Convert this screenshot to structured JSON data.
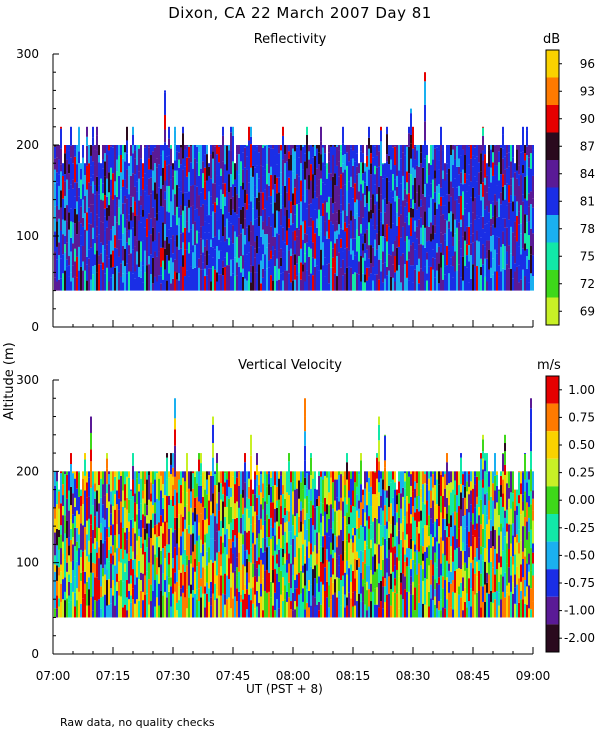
{
  "header": {
    "title": "Dixon, CA 22 March 2007  Day  81",
    "footnote": "Raw data, no quality checks"
  },
  "chart_data": [
    {
      "type": "heatmap",
      "title": "Reflectivity",
      "ylabel": "Altitude (m)",
      "xlabel": "UT  (PST + 8)",
      "ylim": [
        0,
        300
      ],
      "xlim": [
        "07:00",
        "09:00"
      ],
      "y_ticks": [
        "0",
        "100",
        "200",
        "300"
      ],
      "x_ticks": [
        "07:00",
        "07:15",
        "07:30",
        "07:45",
        "08:00",
        "08:15",
        "08:30",
        "08:45",
        "09:00"
      ],
      "colorbar": {
        "unit": "dB",
        "tick_labels": [
          "96",
          "93",
          "90",
          "87",
          "84",
          "81",
          "78",
          "75",
          "72",
          "69"
        ],
        "colors": [
          "#fad200",
          "#ff7a00",
          "#e60000",
          "#2a0a1e",
          "#5a1a96",
          "#1a2ee6",
          "#1ab0f0",
          "#12e8a8",
          "#3ed81a",
          "#c8f026"
        ]
      },
      "data_range_altitude_m": [
        40,
        280
      ],
      "typical_echo_top_m": 200,
      "dominant_values_db": [
        81,
        84
      ]
    },
    {
      "type": "heatmap",
      "title": "Vertical Velocity",
      "ylabel": "Altitude (m)",
      "xlabel": "UT  (PST + 8)",
      "ylim": [
        0,
        300
      ],
      "xlim": [
        "07:00",
        "09:00"
      ],
      "y_ticks": [
        "0",
        "100",
        "200",
        "300"
      ],
      "x_ticks": [
        "07:00",
        "07:15",
        "07:30",
        "07:45",
        "08:00",
        "08:15",
        "08:30",
        "08:45",
        "09:00"
      ],
      "colorbar": {
        "unit": "m/s",
        "tick_labels": [
          "1.00",
          "0.75",
          "0.50",
          "0.25",
          "0.00",
          "-0.25",
          "-0.50",
          "-0.75",
          "-1.00",
          "-2.00"
        ],
        "colors": [
          "#e60000",
          "#ff7a00",
          "#fad200",
          "#c8f026",
          "#3ed81a",
          "#12e8a8",
          "#1ab0f0",
          "#1a2ee6",
          "#5a1a96",
          "#2a0a1e"
        ]
      },
      "data_range_altitude_m": [
        40,
        280
      ],
      "typical_echo_top_m": 200,
      "value_range_ms": [
        -2.0,
        1.0
      ]
    }
  ]
}
